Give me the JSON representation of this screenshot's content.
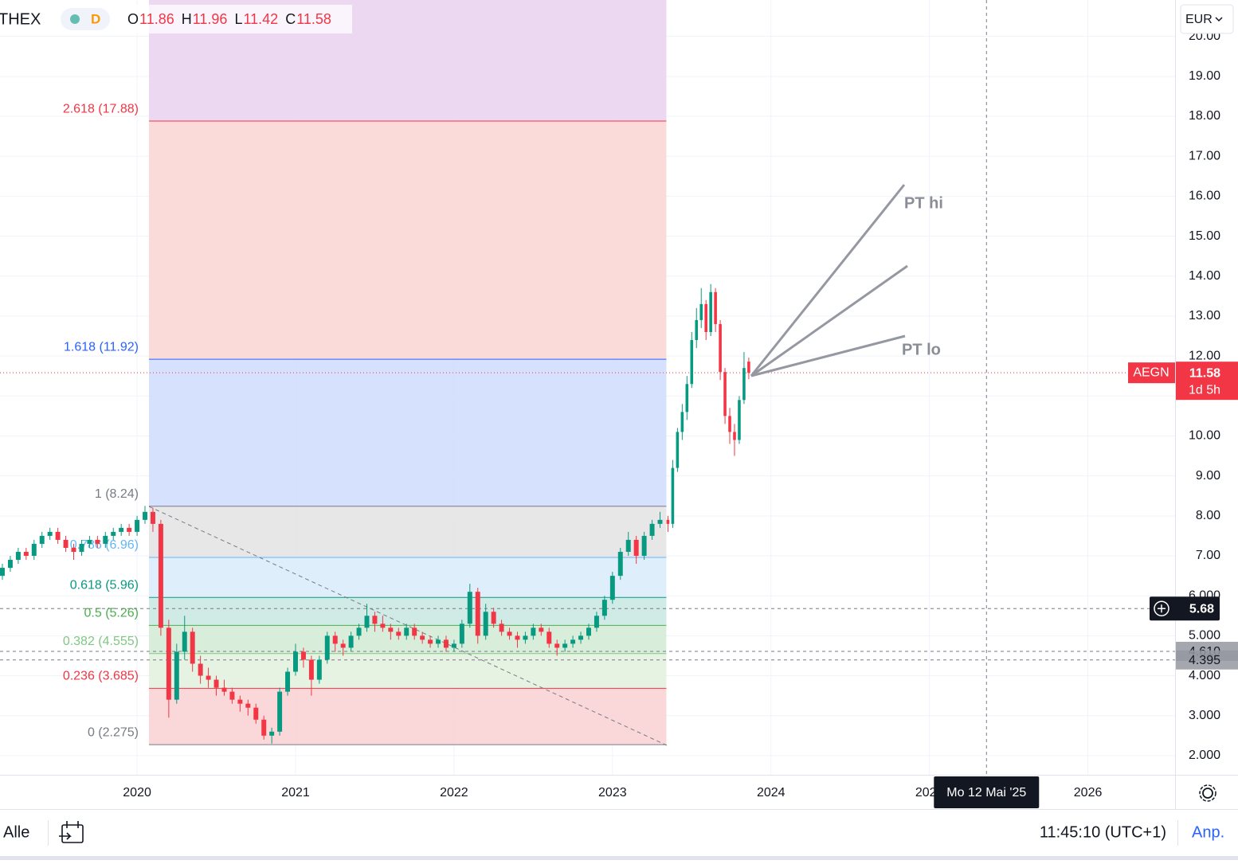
{
  "header": {
    "symbol": "THEX",
    "interval": "D",
    "ohlc_letters": [
      "O",
      "H",
      "L",
      "C"
    ]
  },
  "currency": "EUR",
  "footer": {
    "range": "Alle",
    "clock": "11:45:10 (UTC+1)",
    "adjust": "Anp."
  },
  "chart_data": {
    "type": "candlestick",
    "up_color": "#089981",
    "down_color": "#f23645",
    "grid": true,
    "xlim": [
      2019.135,
      2026.55
    ],
    "ylim": [
      1.52,
      20.91
    ],
    "xticks": [
      2020,
      2021,
      2022,
      2023,
      2024,
      2025,
      2026
    ],
    "yticks": [
      {
        "value": 2,
        "label": "2.000"
      },
      {
        "value": 3,
        "label": "3.000"
      },
      {
        "value": 4,
        "label": "4.000"
      },
      {
        "value": 5,
        "label": "5.000"
      },
      {
        "value": 6,
        "label": "6.000"
      },
      {
        "value": 7,
        "label": "7.00"
      },
      {
        "value": 8,
        "label": "8.00"
      },
      {
        "value": 9,
        "label": "9.00"
      },
      {
        "value": 10,
        "label": "10.00"
      },
      {
        "value": 11,
        "label": "11.00"
      },
      {
        "value": 12,
        "label": "12.00"
      },
      {
        "value": 13,
        "label": "13.00"
      },
      {
        "value": 14,
        "label": "14.00"
      },
      {
        "value": 15,
        "label": "15.00"
      },
      {
        "value": 16,
        "label": "16.00"
      },
      {
        "value": 17,
        "label": "17.00"
      },
      {
        "value": 18,
        "label": "18.00"
      },
      {
        "value": 19,
        "label": "19.00"
      },
      {
        "value": 20,
        "label": "20.00"
      }
    ],
    "candles": {
      "t": [
        2019.15,
        2019.2,
        2019.25,
        2019.3,
        2019.35,
        2019.4,
        2019.45,
        2019.5,
        2019.55,
        2019.6,
        2019.65,
        2019.7,
        2019.75,
        2019.8,
        2019.85,
        2019.9,
        2019.95,
        2020.0,
        2020.05,
        2020.1,
        2020.15,
        2020.2,
        2020.25,
        2020.3,
        2020.35,
        2020.4,
        2020.45,
        2020.5,
        2020.55,
        2020.6,
        2020.65,
        2020.7,
        2020.75,
        2020.8,
        2020.85,
        2020.9,
        2020.95,
        2021.0,
        2021.05,
        2021.1,
        2021.15,
        2021.2,
        2021.25,
        2021.3,
        2021.35,
        2021.4,
        2021.45,
        2021.5,
        2021.55,
        2021.6,
        2021.65,
        2021.7,
        2021.75,
        2021.8,
        2021.85,
        2021.9,
        2021.95,
        2022.0,
        2022.05,
        2022.1,
        2022.15,
        2022.2,
        2022.25,
        2022.3,
        2022.35,
        2022.4,
        2022.45,
        2022.5,
        2022.55,
        2022.6,
        2022.65,
        2022.7,
        2022.75,
        2022.8,
        2022.85,
        2022.9,
        2022.95,
        2023.0,
        2023.05,
        2023.1,
        2023.15,
        2023.2,
        2023.25,
        2023.3,
        2023.35,
        2023.38,
        2023.41,
        2023.44,
        2023.47,
        2023.5,
        2023.53,
        2023.56,
        2023.59,
        2023.62,
        2023.65,
        2023.68,
        2023.71,
        2023.74,
        2023.77,
        2023.8,
        2023.83,
        2023.86
      ],
      "open": [
        6.5,
        6.7,
        6.9,
        7.1,
        7.0,
        7.3,
        7.5,
        7.6,
        7.4,
        7.2,
        7.1,
        7.3,
        7.4,
        7.3,
        7.5,
        7.6,
        7.7,
        7.6,
        7.9,
        8.1,
        7.8,
        5.2,
        3.4,
        4.6,
        5.1,
        4.3,
        4.0,
        3.9,
        3.7,
        3.6,
        3.4,
        3.3,
        3.2,
        2.9,
        2.5,
        2.6,
        3.6,
        4.1,
        4.6,
        4.4,
        3.9,
        4.4,
        5.0,
        4.8,
        4.7,
        5.0,
        5.2,
        5.5,
        5.3,
        5.2,
        5.1,
        5.0,
        5.2,
        5.0,
        4.9,
        4.8,
        4.9,
        4.7,
        4.8,
        5.3,
        6.1,
        5.0,
        5.6,
        5.3,
        5.1,
        5.0,
        4.9,
        5.0,
        5.2,
        5.1,
        4.8,
        4.7,
        4.8,
        4.9,
        5.0,
        5.2,
        5.5,
        5.9,
        6.5,
        7.1,
        7.4,
        7.0,
        7.5,
        7.8,
        7.9,
        7.8,
        9.2,
        10.1,
        10.6,
        11.3,
        12.4,
        12.9,
        13.3,
        12.6,
        13.6,
        12.8,
        11.6,
        10.5,
        10.1,
        9.9,
        10.9,
        11.86
      ],
      "high": [
        6.8,
        7.0,
        7.2,
        7.2,
        7.4,
        7.6,
        7.7,
        7.7,
        7.5,
        7.3,
        7.4,
        7.5,
        7.5,
        7.6,
        7.7,
        7.8,
        7.8,
        8.0,
        8.25,
        8.2,
        7.9,
        5.4,
        4.8,
        5.5,
        5.2,
        4.5,
        4.2,
        4.0,
        3.9,
        3.7,
        3.5,
        3.4,
        3.3,
        3.0,
        2.7,
        3.7,
        4.2,
        4.8,
        4.7,
        4.5,
        4.5,
        5.1,
        5.1,
        4.9,
        5.1,
        5.3,
        5.8,
        5.6,
        5.5,
        5.3,
        5.2,
        5.3,
        5.3,
        5.1,
        5.0,
        5.0,
        5.0,
        4.9,
        5.4,
        6.3,
        6.2,
        5.8,
        5.7,
        5.4,
        5.2,
        5.1,
        5.1,
        5.3,
        5.3,
        5.2,
        4.9,
        4.9,
        5.0,
        5.1,
        5.3,
        5.6,
        6.0,
        6.6,
        7.2,
        7.6,
        7.5,
        7.6,
        7.9,
        8.1,
        8.0,
        9.4,
        10.2,
        10.8,
        11.5,
        12.6,
        13.2,
        13.7,
        13.4,
        13.8,
        13.7,
        12.9,
        11.7,
        10.7,
        10.3,
        11.0,
        12.1,
        11.96
      ],
      "low": [
        6.4,
        6.6,
        6.8,
        6.9,
        6.9,
        7.2,
        7.4,
        7.3,
        7.1,
        6.9,
        7.0,
        7.2,
        7.2,
        7.2,
        7.4,
        7.5,
        7.5,
        7.5,
        7.8,
        7.6,
        5.0,
        2.95,
        3.3,
        4.4,
        4.1,
        3.8,
        3.7,
        3.5,
        3.5,
        3.3,
        3.1,
        3.0,
        2.8,
        2.4,
        2.3,
        2.5,
        3.5,
        4.0,
        4.2,
        3.5,
        3.8,
        4.3,
        4.6,
        4.5,
        4.6,
        4.9,
        5.1,
        5.1,
        5.1,
        4.9,
        4.9,
        4.9,
        4.9,
        4.8,
        4.7,
        4.7,
        4.6,
        4.6,
        4.7,
        5.2,
        4.8,
        4.9,
        5.2,
        5.0,
        4.9,
        4.7,
        4.8,
        4.9,
        5.0,
        4.7,
        4.5,
        4.6,
        4.7,
        4.8,
        4.9,
        5.1,
        5.4,
        5.8,
        6.4,
        7.0,
        6.8,
        6.9,
        7.4,
        7.7,
        7.6,
        7.7,
        9.1,
        9.9,
        10.4,
        11.2,
        12.2,
        12.7,
        12.4,
        12.5,
        12.6,
        11.4,
        10.3,
        9.8,
        9.5,
        9.8,
        10.8,
        11.42
      ],
      "close": [
        6.7,
        6.9,
        7.1,
        7.0,
        7.3,
        7.5,
        7.6,
        7.4,
        7.2,
        7.1,
        7.3,
        7.4,
        7.3,
        7.5,
        7.6,
        7.7,
        7.6,
        7.9,
        8.1,
        7.8,
        5.2,
        3.4,
        4.6,
        5.1,
        4.3,
        4.0,
        3.9,
        3.7,
        3.6,
        3.4,
        3.3,
        3.2,
        2.9,
        2.5,
        2.6,
        3.6,
        4.1,
        4.6,
        4.4,
        3.9,
        4.4,
        5.0,
        4.8,
        4.7,
        5.0,
        5.2,
        5.5,
        5.3,
        5.2,
        5.1,
        5.0,
        5.2,
        5.0,
        4.9,
        4.8,
        4.9,
        4.7,
        4.8,
        5.3,
        6.1,
        5.0,
        5.6,
        5.3,
        5.1,
        5.0,
        4.9,
        5.0,
        5.2,
        5.1,
        4.8,
        4.7,
        4.8,
        4.9,
        5.0,
        5.2,
        5.5,
        5.9,
        6.5,
        7.1,
        7.4,
        7.0,
        7.5,
        7.8,
        7.9,
        7.8,
        9.2,
        10.1,
        10.6,
        11.3,
        12.4,
        12.9,
        13.3,
        12.6,
        13.6,
        12.8,
        11.6,
        10.5,
        10.1,
        9.9,
        10.9,
        11.7,
        11.58
      ]
    },
    "fib": {
      "t_start": 2020.075,
      "t_end": 2023.34,
      "levels": [
        {
          "value": 2.275,
          "label": "0 (2.275)",
          "color": "#787b86",
          "fill": "#f9d3d4"
        },
        {
          "value": 3.685,
          "label": "0.236 (3.685)",
          "color": "#f23645",
          "fill": "#e3f2e0"
        },
        {
          "value": 4.555,
          "label": "0.382 (4.555)",
          "color": "#81c784",
          "fill": "#d5ecd6"
        },
        {
          "value": 5.26,
          "label": "0.5 (5.26)",
          "color": "#4caf50",
          "fill": "#cbe8e3"
        },
        {
          "value": 5.96,
          "label": "0.618 (5.96)",
          "color": "#089981",
          "fill": "#dcecfb"
        },
        {
          "value": 6.96,
          "label": "0.786 (6.96)",
          "color": "#64b5f6",
          "fill": "#e4e4e6"
        },
        {
          "value": 8.24,
          "label": "1 (8.24)",
          "color": "#787b86",
          "fill": "#d2defd"
        },
        {
          "value": 11.92,
          "label": "1.618 (11.92)",
          "color": "#2962ff",
          "fill": "#fbd7d6"
        },
        {
          "value": 17.88,
          "label": "2.618 (17.88)",
          "color": "#f23645",
          "fill": "#ead4ef"
        }
      ]
    },
    "last_price": {
      "symbol": "AEGN",
      "countdown": "1d 5h"
    },
    "price_lines": [
      {
        "value": 4.61,
        "label": "4.610"
      },
      4.395
    ],
    "crosshair": {
      "x": 2025.36,
      "x_label": "Mo 12 Mai '25",
      "y": 5.68
    },
    "annotations": [
      "PT hi",
      "PT lo"
    ]
  }
}
